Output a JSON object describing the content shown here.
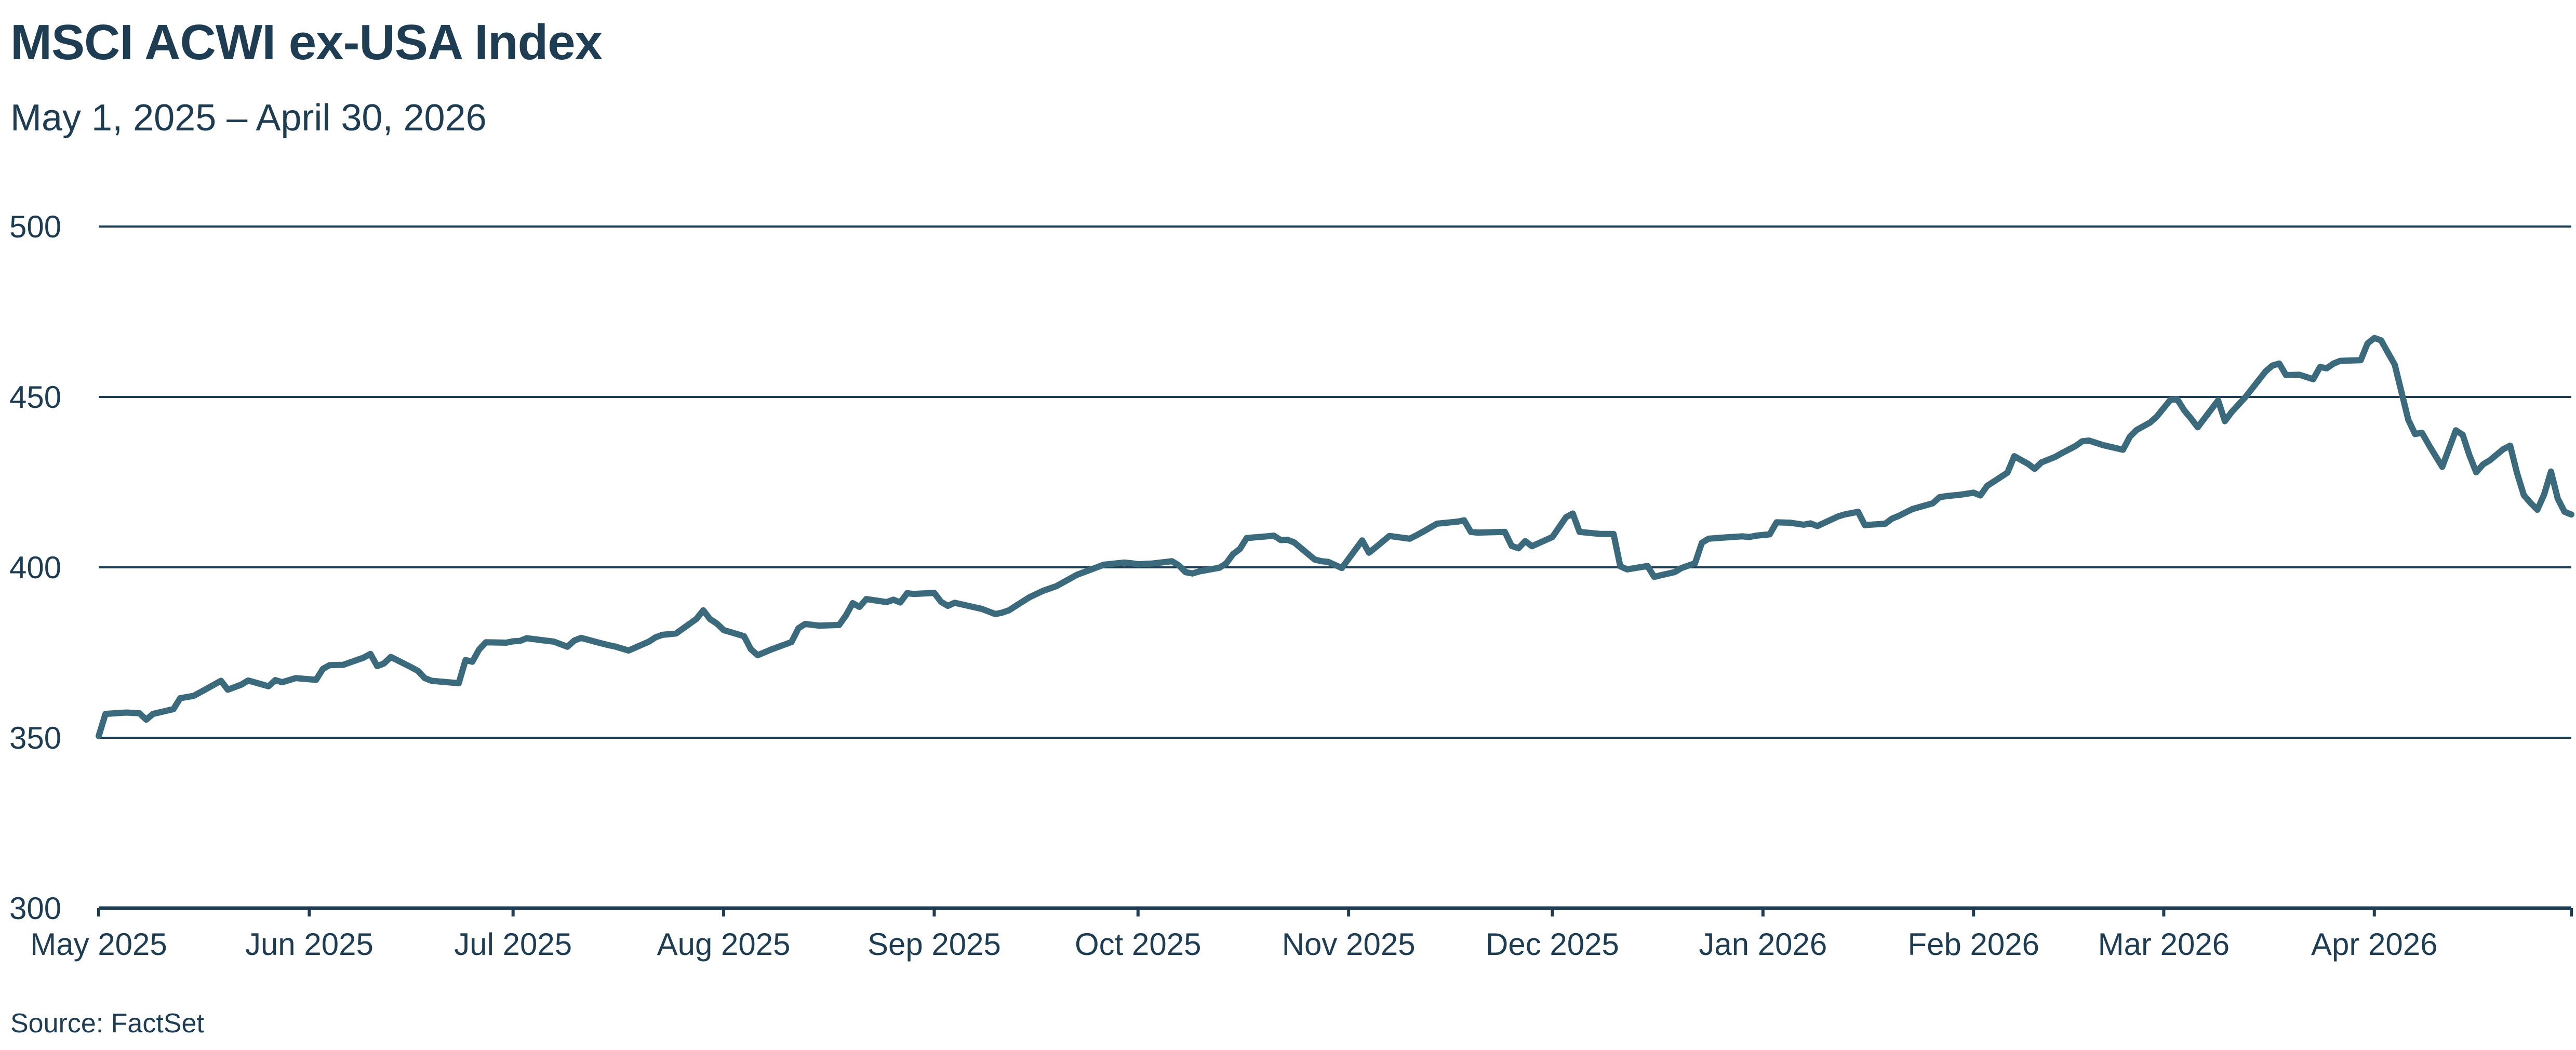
{
  "colors": {
    "line": "#3b6a7c",
    "text": "#1e3d52",
    "grid": "#1e3d52"
  },
  "footer": {
    "source": "Source: FactSet"
  },
  "chart_data": {
    "type": "line",
    "title": "MSCI ACWI ex-USA Index",
    "subtitle": "May 1, 2025 – April 30, 2026",
    "xlabel": "",
    "ylabel": "",
    "ylim": [
      300,
      500
    ],
    "yticks": [
      300,
      350,
      400,
      450,
      500
    ],
    "grid": true,
    "legend": "none",
    "x_range": [
      "2025-05-01",
      "2026-04-30"
    ],
    "xticks": [
      {
        "date": "2025-05-01",
        "label": "May 2025"
      },
      {
        "date": "2025-06-01",
        "label": "Jun 2025"
      },
      {
        "date": "2025-07-01",
        "label": "Jul 2025"
      },
      {
        "date": "2025-08-01",
        "label": "Aug 2025"
      },
      {
        "date": "2025-09-01",
        "label": "Sep 2025"
      },
      {
        "date": "2025-10-01",
        "label": "Oct 2025"
      },
      {
        "date": "2025-11-01",
        "label": "Nov 2025"
      },
      {
        "date": "2025-12-01",
        "label": "Dec 2025"
      },
      {
        "date": "2026-01-01",
        "label": "Jan 2026"
      },
      {
        "date": "2026-02-01",
        "label": "Feb 2026"
      },
      {
        "date": "2026-03-01",
        "label": "Mar 2026"
      },
      {
        "date": "2026-04-01",
        "label": "Apr 2026"
      }
    ],
    "series": [
      {
        "values": [
          [
            "2025-05-01",
            350.5
          ],
          [
            "2025-05-02",
            357
          ],
          [
            "2025-05-05",
            357.4
          ],
          [
            "2025-05-07",
            357.2
          ],
          [
            "2025-05-08",
            355.3
          ],
          [
            "2025-05-09",
            357
          ],
          [
            "2025-05-12",
            358.4
          ],
          [
            "2025-05-13",
            361.6
          ],
          [
            "2025-05-15",
            362.3
          ],
          [
            "2025-05-16",
            363.4
          ],
          [
            "2025-05-19",
            366.7
          ],
          [
            "2025-05-20",
            364.1
          ],
          [
            "2025-05-22",
            365.6
          ],
          [
            "2025-05-23",
            366.8
          ],
          [
            "2025-05-26",
            365.1
          ],
          [
            "2025-05-27",
            366.9
          ],
          [
            "2025-05-28",
            366.3
          ],
          [
            "2025-05-30",
            367.5
          ],
          [
            "2025-06-02",
            367
          ],
          [
            "2025-06-03",
            370.2
          ],
          [
            "2025-06-04",
            371.3
          ],
          [
            "2025-06-06",
            371.4
          ],
          [
            "2025-06-09",
            373.5
          ],
          [
            "2025-06-10",
            374.6
          ],
          [
            "2025-06-11",
            371
          ],
          [
            "2025-06-12",
            371.8
          ],
          [
            "2025-06-13",
            373.7
          ],
          [
            "2025-06-16",
            370.7
          ],
          [
            "2025-06-17",
            369.6
          ],
          [
            "2025-06-18",
            367.5
          ],
          [
            "2025-06-19",
            366.7
          ],
          [
            "2025-06-23",
            366
          ],
          [
            "2025-06-24",
            372.8
          ],
          [
            "2025-06-25",
            372.3
          ],
          [
            "2025-06-26",
            375.9
          ],
          [
            "2025-06-27",
            378
          ],
          [
            "2025-06-30",
            377.9
          ],
          [
            "2025-07-01",
            378.3
          ],
          [
            "2025-07-02",
            378.4
          ],
          [
            "2025-07-03",
            379.2
          ],
          [
            "2025-07-07",
            378.2
          ],
          [
            "2025-07-09",
            376.7
          ],
          [
            "2025-07-10",
            378.5
          ],
          [
            "2025-07-11",
            379.3
          ],
          [
            "2025-07-14",
            377.7
          ],
          [
            "2025-07-15",
            377.2
          ],
          [
            "2025-07-16",
            376.8
          ],
          [
            "2025-07-18",
            375.6
          ],
          [
            "2025-07-21",
            378.2
          ],
          [
            "2025-07-22",
            379.5
          ],
          [
            "2025-07-23",
            380.2
          ],
          [
            "2025-07-25",
            380.6
          ],
          [
            "2025-07-28",
            384.9
          ],
          [
            "2025-07-29",
            387.4
          ],
          [
            "2025-07-30",
            384.8
          ],
          [
            "2025-07-31",
            383.5
          ],
          [
            "2025-08-01",
            381.6
          ],
          [
            "2025-08-04",
            379.8
          ],
          [
            "2025-08-05",
            376
          ],
          [
            "2025-08-06",
            374.2
          ],
          [
            "2025-08-08",
            375.9
          ],
          [
            "2025-08-11",
            378.1
          ],
          [
            "2025-08-12",
            382.1
          ],
          [
            "2025-08-13",
            383.4
          ],
          [
            "2025-08-15",
            382.9
          ],
          [
            "2025-08-18",
            383.1
          ],
          [
            "2025-08-19",
            385.9
          ],
          [
            "2025-08-20",
            389.5
          ],
          [
            "2025-08-21",
            388.4
          ],
          [
            "2025-08-22",
            390.7
          ],
          [
            "2025-08-25",
            389.8
          ],
          [
            "2025-08-26",
            390.5
          ],
          [
            "2025-08-27",
            389.7
          ],
          [
            "2025-08-28",
            392.4
          ],
          [
            "2025-08-29",
            392.2
          ],
          [
            "2025-09-01",
            392.5
          ],
          [
            "2025-09-02",
            389.9
          ],
          [
            "2025-09-03",
            388.7
          ],
          [
            "2025-09-04",
            389.6
          ],
          [
            "2025-09-08",
            387.8
          ],
          [
            "2025-09-10",
            386.3
          ],
          [
            "2025-09-11",
            386.7
          ],
          [
            "2025-09-12",
            387.4
          ],
          [
            "2025-09-15",
            391.2
          ],
          [
            "2025-09-17",
            393.1
          ],
          [
            "2025-09-19",
            394.5
          ],
          [
            "2025-09-22",
            397.8
          ],
          [
            "2025-09-24",
            399.3
          ],
          [
            "2025-09-26",
            400.8
          ],
          [
            "2025-09-29",
            401.4
          ],
          [
            "2025-09-30",
            401.2
          ],
          [
            "2025-10-01",
            400.9
          ],
          [
            "2025-10-03",
            401.1
          ],
          [
            "2025-10-06",
            401.8
          ],
          [
            "2025-10-07",
            400.6
          ],
          [
            "2025-10-08",
            398.6
          ],
          [
            "2025-10-09",
            398.2
          ],
          [
            "2025-10-10",
            398.8
          ],
          [
            "2025-10-13",
            399.9
          ],
          [
            "2025-10-14",
            401.2
          ],
          [
            "2025-10-15",
            403.9
          ],
          [
            "2025-10-16",
            405.4
          ],
          [
            "2025-10-17",
            408.6
          ],
          [
            "2025-10-20",
            409.1
          ],
          [
            "2025-10-21",
            409.3
          ],
          [
            "2025-10-22",
            408
          ],
          [
            "2025-10-23",
            408.1
          ],
          [
            "2025-10-24",
            407.3
          ],
          [
            "2025-10-27",
            402.3
          ],
          [
            "2025-10-28",
            401.8
          ],
          [
            "2025-10-29",
            401.6
          ],
          [
            "2025-10-31",
            399.8
          ],
          [
            "2025-11-03",
            407.9
          ],
          [
            "2025-11-04",
            404.3
          ],
          [
            "2025-11-05",
            405.9
          ],
          [
            "2025-11-07",
            409.2
          ],
          [
            "2025-11-10",
            408.4
          ],
          [
            "2025-11-11",
            409.4
          ],
          [
            "2025-11-12",
            410.5
          ],
          [
            "2025-11-14",
            412.8
          ],
          [
            "2025-11-17",
            413.4
          ],
          [
            "2025-11-18",
            413.8
          ],
          [
            "2025-11-19",
            410.4
          ],
          [
            "2025-11-20",
            410.2
          ],
          [
            "2025-11-24",
            410.4
          ],
          [
            "2025-11-25",
            406.3
          ],
          [
            "2025-11-26",
            405.6
          ],
          [
            "2025-11-27",
            407.7
          ],
          [
            "2025-11-28",
            406.2
          ],
          [
            "2025-12-01",
            408.9
          ],
          [
            "2025-12-03",
            414.7
          ],
          [
            "2025-12-04",
            415.8
          ],
          [
            "2025-12-05",
            410.4
          ],
          [
            "2025-12-08",
            409.8
          ],
          [
            "2025-12-10",
            409.8
          ],
          [
            "2025-12-11",
            400.3
          ],
          [
            "2025-12-12",
            399.4
          ],
          [
            "2025-12-15",
            400.4
          ],
          [
            "2025-12-16",
            397.2
          ],
          [
            "2025-12-17",
            397.7
          ],
          [
            "2025-12-19",
            398.6
          ],
          [
            "2025-12-20",
            399.8
          ],
          [
            "2025-12-22",
            401.2
          ],
          [
            "2025-12-23",
            407.2
          ],
          [
            "2025-12-24",
            408.4
          ],
          [
            "2025-12-26",
            408.7
          ],
          [
            "2025-12-29",
            409.1
          ],
          [
            "2025-12-30",
            408.9
          ],
          [
            "2025-12-31",
            409.3
          ],
          [
            "2026-01-02",
            409.7
          ],
          [
            "2026-01-03",
            413.2
          ],
          [
            "2026-01-05",
            413.1
          ],
          [
            "2026-01-07",
            412.5
          ],
          [
            "2026-01-08",
            412.9
          ],
          [
            "2026-01-09",
            412.1
          ],
          [
            "2026-01-12",
            414.9
          ],
          [
            "2026-01-13",
            415.5
          ],
          [
            "2026-01-15",
            416.3
          ],
          [
            "2026-01-16",
            412.4
          ],
          [
            "2026-01-19",
            412.8
          ],
          [
            "2026-01-20",
            414.3
          ],
          [
            "2026-01-21",
            415.1
          ],
          [
            "2026-01-23",
            417.1
          ],
          [
            "2026-01-26",
            418.8
          ],
          [
            "2026-01-27",
            420.6
          ],
          [
            "2026-01-28",
            420.9
          ],
          [
            "2026-01-30",
            421.3
          ],
          [
            "2026-02-01",
            421.9
          ],
          [
            "2026-02-02",
            421.1
          ],
          [
            "2026-02-03",
            423.9
          ],
          [
            "2026-02-04",
            425.2
          ],
          [
            "2026-02-06",
            427.8
          ],
          [
            "2026-02-07",
            432.6
          ],
          [
            "2026-02-09",
            430.4
          ],
          [
            "2026-02-10",
            428.9
          ],
          [
            "2026-02-11",
            430.8
          ],
          [
            "2026-02-13",
            432.4
          ],
          [
            "2026-02-14",
            433.5
          ],
          [
            "2026-02-16",
            435.6
          ],
          [
            "2026-02-17",
            437
          ],
          [
            "2026-02-18",
            437.2
          ],
          [
            "2026-02-20",
            435.9
          ],
          [
            "2026-02-23",
            434.5
          ],
          [
            "2026-02-24",
            438.3
          ],
          [
            "2026-02-25",
            440.3
          ],
          [
            "2026-02-27",
            442.5
          ],
          [
            "2026-02-28",
            444.3
          ],
          [
            "2026-03-02",
            449.2
          ],
          [
            "2026-03-03",
            449.3
          ],
          [
            "2026-03-04",
            446.1
          ],
          [
            "2026-03-05",
            443.7
          ],
          [
            "2026-03-06",
            441.1
          ],
          [
            "2026-03-09",
            449
          ],
          [
            "2026-03-10",
            442.9
          ],
          [
            "2026-03-11",
            445.6
          ],
          [
            "2026-03-13",
            449.9
          ],
          [
            "2026-03-16",
            457.5
          ],
          [
            "2026-03-17",
            459.2
          ],
          [
            "2026-03-18",
            459.8
          ],
          [
            "2026-03-19",
            456.4
          ],
          [
            "2026-03-21",
            456.5
          ],
          [
            "2026-03-23",
            455.2
          ],
          [
            "2026-03-24",
            458.8
          ],
          [
            "2026-03-25",
            458.4
          ],
          [
            "2026-03-26",
            459.8
          ],
          [
            "2026-03-27",
            460.6
          ],
          [
            "2026-03-30",
            460.8
          ],
          [
            "2026-03-31",
            465.7
          ],
          [
            "2026-04-01",
            467.3
          ],
          [
            "2026-04-02",
            466.6
          ],
          [
            "2026-04-03",
            463
          ],
          [
            "2026-04-04",
            459.5
          ],
          [
            "2026-04-06",
            443.3
          ],
          [
            "2026-04-07",
            439.1
          ],
          [
            "2026-04-08",
            439.5
          ],
          [
            "2026-04-09",
            436
          ],
          [
            "2026-04-10",
            432.7
          ],
          [
            "2026-04-11",
            429.5
          ],
          [
            "2026-04-13",
            440.2
          ],
          [
            "2026-04-14",
            438.9
          ],
          [
            "2026-04-15",
            432.9
          ],
          [
            "2026-04-16",
            427.9
          ],
          [
            "2026-04-17",
            430.2
          ],
          [
            "2026-04-18",
            431.4
          ],
          [
            "2026-04-20",
            434.7
          ],
          [
            "2026-04-21",
            435.7
          ],
          [
            "2026-04-22",
            427.7
          ],
          [
            "2026-04-23",
            421.2
          ],
          [
            "2026-04-24",
            418.9
          ],
          [
            "2026-04-25",
            416.9
          ],
          [
            "2026-04-26",
            421.4
          ],
          [
            "2026-04-27",
            428.1
          ],
          [
            "2026-04-28",
            420.2
          ],
          [
            "2026-04-29",
            416.3
          ],
          [
            "2026-04-30",
            415.5
          ]
        ]
      }
    ]
  }
}
